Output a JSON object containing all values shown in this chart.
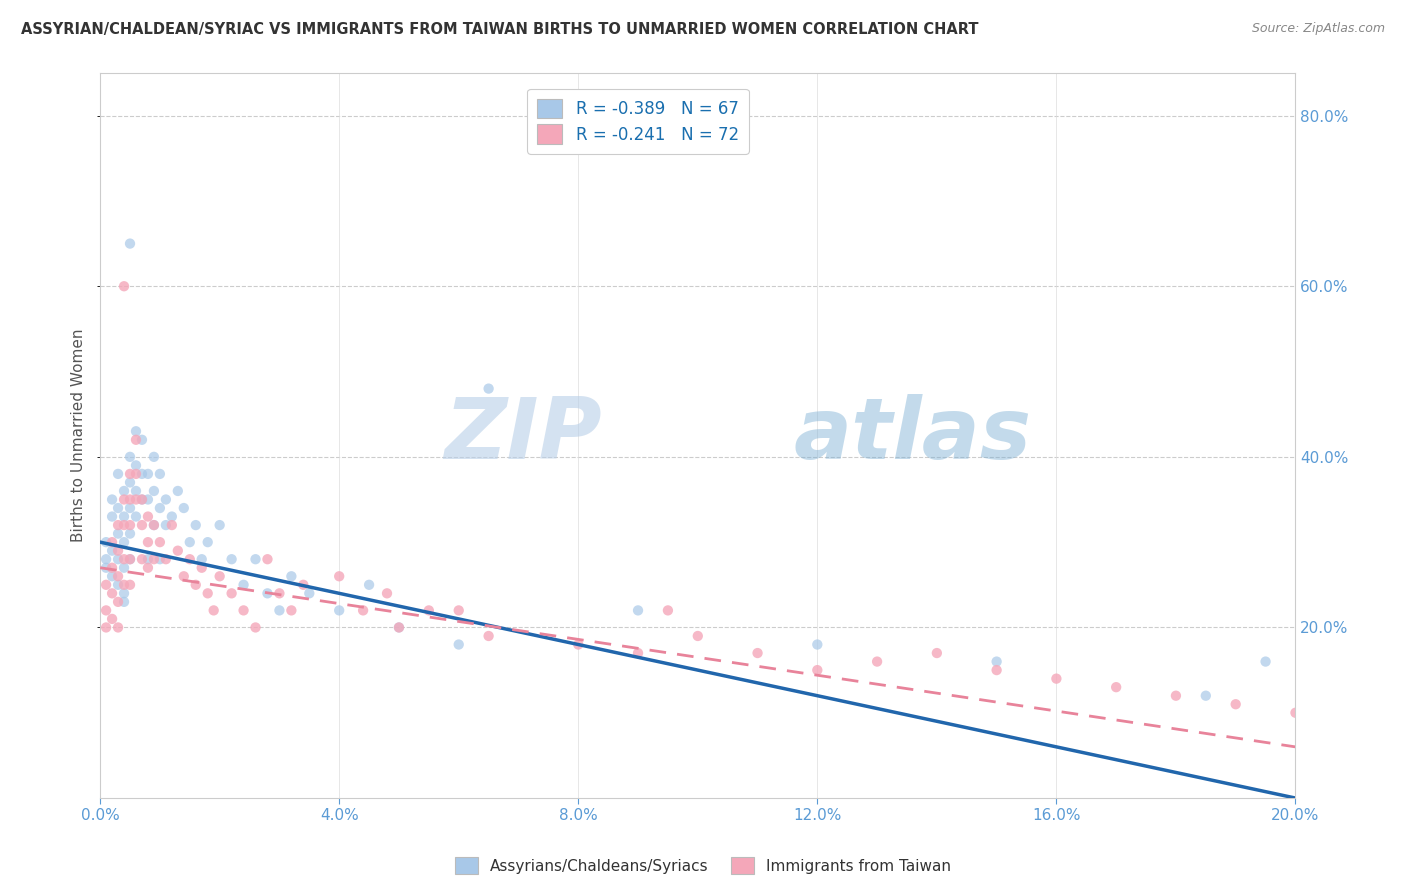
{
  "title": "ASSYRIAN/CHALDEAN/SYRIAC VS IMMIGRANTS FROM TAIWAN BIRTHS TO UNMARRIED WOMEN CORRELATION CHART",
  "source": "Source: ZipAtlas.com",
  "ylabel": "Births to Unmarried Women",
  "xlabel": "",
  "xlim": [
    0.0,
    0.2
  ],
  "ylim": [
    0.0,
    0.85
  ],
  "xticks": [
    0.0,
    0.04,
    0.08,
    0.12,
    0.16,
    0.2
  ],
  "yticks_left": [],
  "yticks_right": [
    0.2,
    0.4,
    0.6,
    0.8
  ],
  "series1_label": "Assyrians/Chaldeans/Syriacs",
  "series2_label": "Immigrants from Taiwan",
  "series1_color": "#a8c8e8",
  "series2_color": "#f4a7b9",
  "series1_R": -0.389,
  "series1_N": 67,
  "series2_R": -0.241,
  "series2_N": 72,
  "title_color": "#333333",
  "axis_color": "#5b9bd5",
  "watermark_zip": "ZIP",
  "watermark_atlas": "atlas",
  "trend1_x0": 0.0,
  "trend1_y0": 0.3,
  "trend1_x1": 0.2,
  "trend1_y1": 0.0,
  "trend2_x0": 0.0,
  "trend2_y0": 0.27,
  "trend2_x1": 0.2,
  "trend2_y1": 0.06,
  "series1_x": [
    0.001,
    0.001,
    0.001,
    0.002,
    0.002,
    0.002,
    0.002,
    0.003,
    0.003,
    0.003,
    0.003,
    0.003,
    0.004,
    0.004,
    0.004,
    0.004,
    0.004,
    0.004,
    0.005,
    0.005,
    0.005,
    0.005,
    0.005,
    0.005,
    0.006,
    0.006,
    0.006,
    0.006,
    0.007,
    0.007,
    0.007,
    0.008,
    0.008,
    0.008,
    0.009,
    0.009,
    0.009,
    0.01,
    0.01,
    0.01,
    0.011,
    0.011,
    0.012,
    0.013,
    0.014,
    0.015,
    0.016,
    0.017,
    0.018,
    0.02,
    0.022,
    0.024,
    0.026,
    0.028,
    0.03,
    0.032,
    0.035,
    0.04,
    0.045,
    0.05,
    0.06,
    0.065,
    0.09,
    0.12,
    0.15,
    0.185,
    0.195
  ],
  "series1_y": [
    0.3,
    0.28,
    0.27,
    0.35,
    0.33,
    0.29,
    0.26,
    0.38,
    0.34,
    0.31,
    0.28,
    0.25,
    0.36,
    0.33,
    0.3,
    0.27,
    0.24,
    0.23,
    0.65,
    0.4,
    0.37,
    0.34,
    0.31,
    0.28,
    0.43,
    0.39,
    0.36,
    0.33,
    0.42,
    0.38,
    0.35,
    0.38,
    0.35,
    0.28,
    0.4,
    0.36,
    0.32,
    0.38,
    0.34,
    0.28,
    0.35,
    0.32,
    0.33,
    0.36,
    0.34,
    0.3,
    0.32,
    0.28,
    0.3,
    0.32,
    0.28,
    0.25,
    0.28,
    0.24,
    0.22,
    0.26,
    0.24,
    0.22,
    0.25,
    0.2,
    0.18,
    0.48,
    0.22,
    0.18,
    0.16,
    0.12,
    0.16
  ],
  "series2_x": [
    0.001,
    0.001,
    0.001,
    0.002,
    0.002,
    0.002,
    0.002,
    0.003,
    0.003,
    0.003,
    0.003,
    0.003,
    0.004,
    0.004,
    0.004,
    0.004,
    0.004,
    0.005,
    0.005,
    0.005,
    0.005,
    0.005,
    0.006,
    0.006,
    0.006,
    0.007,
    0.007,
    0.007,
    0.008,
    0.008,
    0.008,
    0.009,
    0.009,
    0.01,
    0.011,
    0.012,
    0.013,
    0.014,
    0.015,
    0.016,
    0.017,
    0.018,
    0.019,
    0.02,
    0.022,
    0.024,
    0.026,
    0.028,
    0.03,
    0.032,
    0.034,
    0.04,
    0.044,
    0.048,
    0.05,
    0.055,
    0.06,
    0.065,
    0.08,
    0.09,
    0.095,
    0.1,
    0.11,
    0.12,
    0.13,
    0.14,
    0.15,
    0.16,
    0.17,
    0.18,
    0.19,
    0.2
  ],
  "series2_y": [
    0.25,
    0.22,
    0.2,
    0.3,
    0.27,
    0.24,
    0.21,
    0.32,
    0.29,
    0.26,
    0.23,
    0.2,
    0.6,
    0.35,
    0.32,
    0.28,
    0.25,
    0.38,
    0.35,
    0.32,
    0.28,
    0.25,
    0.42,
    0.38,
    0.35,
    0.35,
    0.32,
    0.28,
    0.33,
    0.3,
    0.27,
    0.32,
    0.28,
    0.3,
    0.28,
    0.32,
    0.29,
    0.26,
    0.28,
    0.25,
    0.27,
    0.24,
    0.22,
    0.26,
    0.24,
    0.22,
    0.2,
    0.28,
    0.24,
    0.22,
    0.25,
    0.26,
    0.22,
    0.24,
    0.2,
    0.22,
    0.22,
    0.19,
    0.18,
    0.17,
    0.22,
    0.19,
    0.17,
    0.15,
    0.16,
    0.17,
    0.15,
    0.14,
    0.13,
    0.12,
    0.11,
    0.1
  ]
}
